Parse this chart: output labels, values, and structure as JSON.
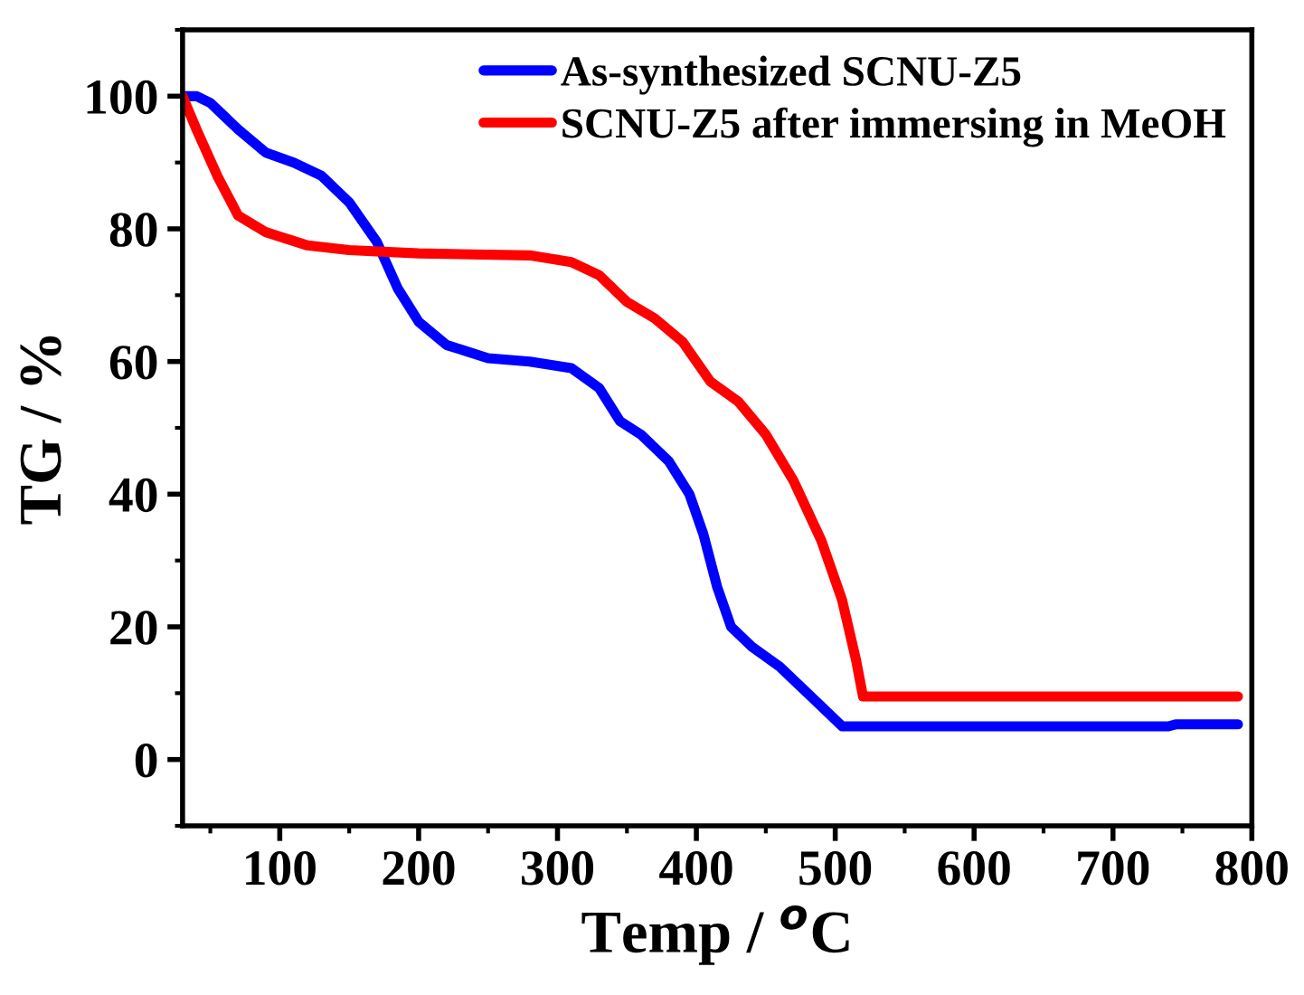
{
  "chart_data": {
    "type": "line",
    "xlabel": "Temp / $^{o}$C",
    "ylabel": "TG / %",
    "xlim": [
      30,
      800
    ],
    "ylim": [
      -10,
      110
    ],
    "xticks": [
      100,
      200,
      300,
      400,
      500,
      600,
      700,
      800
    ],
    "yticks": [
      0,
      20,
      40,
      60,
      80,
      100
    ],
    "grid": false,
    "legend": "top right",
    "marker": "none",
    "line_style": "solid",
    "series": [
      {
        "name": "As-synthesized SCNU-Z5",
        "color": "#0000ff",
        "x": [
          30,
          40,
          50,
          70,
          90,
          110,
          130,
          150,
          170,
          185,
          200,
          220,
          250,
          280,
          310,
          330,
          345,
          360,
          380,
          395,
          405,
          415,
          425,
          440,
          460,
          480,
          495,
          505,
          550,
          740,
          745,
          790
        ],
        "values": [
          100,
          100,
          99,
          95,
          91.5,
          90,
          88,
          84,
          78,
          71,
          66,
          62.5,
          60.5,
          60,
          59,
          56,
          51,
          49,
          45,
          40,
          34,
          26,
          20,
          17,
          14,
          10,
          7,
          5,
          5,
          5,
          5.3,
          5.3
        ]
      },
      {
        "name": "SCNU-Z5 after immersing in MeOH",
        "color": "#ff0000",
        "x": [
          30,
          40,
          55,
          70,
          90,
          120,
          150,
          200,
          280,
          310,
          330,
          350,
          370,
          390,
          410,
          430,
          450,
          470,
          490,
          505,
          515,
          520,
          790
        ],
        "values": [
          100,
          95,
          88,
          82,
          79.5,
          77.5,
          76.8,
          76.3,
          76,
          75,
          73,
          69,
          66.5,
          63,
          57,
          54,
          49,
          42,
          33,
          24,
          15,
          9.5,
          9.5
        ]
      }
    ]
  }
}
